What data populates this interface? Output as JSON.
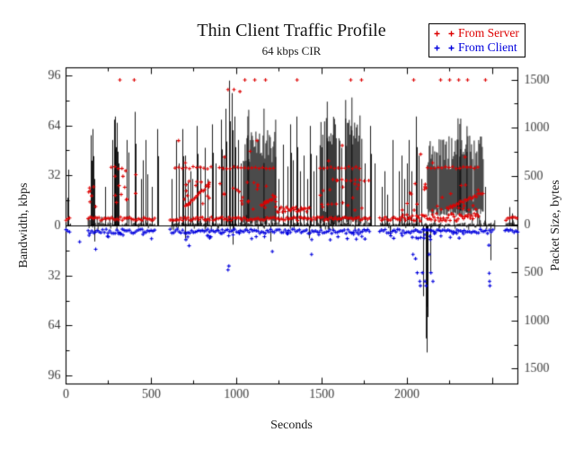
{
  "figure": {
    "title": "Thin Client Traffic Profile",
    "subtitle": "64 kbps CIR",
    "x_label": "Seconds",
    "y_left_label": "Bandwidth, kbps",
    "y_right_label": "Packet Size, bytes",
    "legend": {
      "items": [
        {
          "label": "From Server",
          "color": "#dd0000"
        },
        {
          "label": "From Client",
          "color": "#0000dd"
        }
      ]
    }
  },
  "chart_data": {
    "type": "line+scatter dual-axis time series",
    "title": "Thin Client Traffic Profile",
    "subtitle": "64 kbps CIR",
    "mirrored_axes": true,
    "note": "Upper half = traffic from server, lower half = traffic from client; tick labels show absolute values",
    "x_axis": {
      "label": "Seconds",
      "range": [
        0,
        2650
      ],
      "major_ticks": [
        0,
        500,
        1000,
        1500,
        2000,
        2500
      ],
      "labeled_ticks": [
        0,
        500,
        1000,
        1500,
        2000
      ],
      "minor_step": 250
    },
    "y_left": {
      "label": "Bandwidth, kbps",
      "range": [
        -101,
        101
      ],
      "major_ticks": [
        96,
        64,
        32,
        0,
        -32,
        -64,
        -96
      ],
      "minor_step": 16
    },
    "y_right": {
      "label": "Packet Size, bytes",
      "range": [
        -1626,
        1626
      ],
      "major_ticks": [
        1500,
        1000,
        500,
        0,
        -500,
        -1000,
        -1500
      ],
      "minor_step": 250
    },
    "legend_position": "top-right outside plot",
    "series": [
      {
        "name": "Bandwidth",
        "kind": "bandwidth-line",
        "axis": "left",
        "color": "#000000",
        "baseline_ranges": [
          [
            0,
            30
          ],
          [
            130,
            520
          ],
          [
            610,
            1790
          ],
          [
            1840,
            2520
          ],
          [
            2580,
            2650
          ]
        ],
        "dense_blocks": [
          {
            "range": [
              1040,
              1230
            ],
            "lo": 0,
            "hi": 62
          },
          {
            "range": [
              1490,
              1610
            ],
            "lo": 0,
            "hi": 72
          },
          {
            "range": [
              1640,
              1740
            ],
            "lo": 0,
            "hi": 72
          },
          {
            "range": [
              2120,
              2450
            ],
            "lo": 6,
            "hi": 58
          }
        ],
        "spikes": [
          [
            8,
            18
          ],
          [
            15,
            36
          ],
          [
            150,
            58
          ],
          [
            158,
            62
          ],
          [
            166,
            30
          ],
          [
            168,
            -10
          ],
          [
            232,
            25
          ],
          [
            274,
            55
          ],
          [
            283,
            68
          ],
          [
            290,
            70
          ],
          [
            300,
            66
          ],
          [
            310,
            40
          ],
          [
            358,
            55
          ],
          [
            369,
            47
          ],
          [
            405,
            73
          ],
          [
            440,
            30
          ],
          [
            455,
            42
          ],
          [
            470,
            55
          ],
          [
            480,
            33
          ],
          [
            505,
            25
          ],
          [
            537,
            62
          ],
          [
            623,
            30
          ],
          [
            648,
            55
          ],
          [
            665,
            40
          ],
          [
            685,
            62
          ],
          [
            700,
            45
          ],
          [
            702,
            -8
          ],
          [
            715,
            28
          ],
          [
            730,
            35
          ],
          [
            745,
            30
          ],
          [
            769,
            64
          ],
          [
            790,
            38
          ],
          [
            816,
            50
          ],
          [
            835,
            30
          ],
          [
            859,
            65
          ],
          [
            880,
            40
          ],
          [
            911,
            68
          ],
          [
            925,
            45
          ],
          [
            938,
            75
          ],
          [
            959,
            93
          ],
          [
            975,
            85
          ],
          [
            980,
            -12
          ],
          [
            990,
            70
          ],
          [
            1010,
            55
          ],
          [
            1025,
            40
          ],
          [
            1200,
            -10
          ],
          [
            1250,
            30
          ],
          [
            1275,
            52
          ],
          [
            1300,
            38
          ],
          [
            1317,
            65
          ],
          [
            1335,
            42
          ],
          [
            1354,
            70
          ],
          [
            1375,
            35
          ],
          [
            1396,
            45
          ],
          [
            1415,
            30
          ],
          [
            1430,
            -8
          ],
          [
            1433,
            64
          ],
          [
            1455,
            35
          ],
          [
            1470,
            45
          ],
          [
            1620,
            50
          ],
          [
            1755,
            40
          ],
          [
            1786,
            64
          ],
          [
            1812,
            40
          ],
          [
            1855,
            25
          ],
          [
            1870,
            35
          ],
          [
            1885,
            20
          ],
          [
            1900,
            -6
          ],
          [
            1917,
            55
          ],
          [
            1955,
            35
          ],
          [
            1970,
            45
          ],
          [
            1985,
            30
          ],
          [
            2000,
            40
          ],
          [
            2015,
            55
          ],
          [
            2030,
            35
          ],
          [
            2054,
            70
          ],
          [
            2070,
            45
          ],
          [
            2085,
            30
          ],
          [
            2095,
            -45
          ],
          [
            2110,
            -72
          ],
          [
            2120,
            -81
          ],
          [
            2140,
            -30
          ],
          [
            2460,
            25
          ],
          [
            2490,
            -22
          ],
          [
            2600,
            12
          ],
          [
            2620,
            8
          ]
        ]
      },
      {
        "name": "From Server",
        "kind": "packets",
        "axis": "right",
        "color": "#dd0000",
        "rows": [
          {
            "bytes": 60,
            "ranges": [
              [
                0,
                30
              ],
              [
                130,
                520
              ],
              [
                610,
                1790
              ],
              [
                1840,
                1960
              ],
              [
                2580,
                2650
              ]
            ],
            "step": 2,
            "jitter": 18
          },
          {
            "bytes": 75,
            "ranges": [
              [
                1960,
                2420
              ]
            ],
            "step": 1.5,
            "jitter": 40
          },
          {
            "bytes": 155,
            "ranges": [
              [
                1230,
                1430
              ]
            ],
            "step": 1.5,
            "jitter": 28
          },
          {
            "bytes": 590,
            "ranges": [
              [
                265,
                335
              ],
              [
                640,
                860
              ],
              [
                900,
                1230
              ],
              [
                1490,
                1740
              ],
              [
                2120,
                2420
              ]
            ],
            "step": 4,
            "jitter": 12
          },
          {
            "bytes": 460,
            "ranges": [
              [
                1565,
                1776
              ]
            ],
            "step": 5,
            "jitter": 10
          }
        ],
        "stairs": [
          {
            "from": [
              700,
              180
            ],
            "to": [
              840,
              420
            ],
            "n": 16
          },
          {
            "from": [
              1143,
              200
            ],
            "to": [
              1227,
              290
            ],
            "n": 12
          },
          {
            "from": [
              2235,
              170
            ],
            "to": [
              2445,
              330
            ],
            "n": 22
          }
        ],
        "clusters": [
          {
            "t": [
              130,
              175
            ],
            "bytes": [
              150,
              430
            ],
            "n": 7
          },
          {
            "t": [
              270,
              410
            ],
            "bytes": [
              200,
              560
            ],
            "n": 12
          },
          {
            "t": [
              640,
              860
            ],
            "bytes": [
              200,
              470
            ],
            "n": 16
          },
          {
            "t": [
              900,
              1230
            ],
            "bytes": [
              150,
              480
            ],
            "n": 22
          },
          {
            "t": [
              1490,
              1740
            ],
            "bytes": [
              150,
              460
            ],
            "n": 18
          },
          {
            "t": [
              1950,
              2420
            ],
            "bytes": [
              120,
              430
            ],
            "n": 26
          }
        ],
        "points": [
          [
            316,
            1500
          ],
          [
            400,
            1500
          ],
          [
            950,
            1400
          ],
          [
            985,
            1400
          ],
          [
            1020,
            1380
          ],
          [
            1049,
            1500
          ],
          [
            1107,
            1500
          ],
          [
            1170,
            1500
          ],
          [
            1355,
            1500
          ],
          [
            1670,
            1500
          ],
          [
            1733,
            1500
          ],
          [
            2039,
            1500
          ],
          [
            2197,
            1500
          ],
          [
            2250,
            1500
          ],
          [
            2303,
            1500
          ],
          [
            2355,
            1500
          ],
          [
            2460,
            1500
          ],
          [
            660,
            870
          ],
          [
            1080,
            760
          ],
          [
            1620,
            820
          ],
          [
            2080,
            730
          ],
          [
            700,
            640
          ],
          [
            930,
            700
          ],
          [
            1540,
            660
          ],
          [
            2150,
            640
          ],
          [
            2340,
            700
          ],
          [
            1120,
            870
          ]
        ]
      },
      {
        "name": "From Client",
        "kind": "packets",
        "axis": "right",
        "color": "#0000dd",
        "rows": [
          {
            "bytes": -70,
            "ranges": [
              [
                0,
                30
              ],
              [
                130,
                530
              ],
              [
                610,
                1790
              ],
              [
                1840,
                2510
              ],
              [
                2575,
                2650
              ]
            ],
            "step": 2,
            "jitter": 22
          }
        ],
        "clusters": [
          {
            "t": [
              130,
              520
            ],
            "bytes": [
              -150,
              -90
            ],
            "n": 8
          },
          {
            "t": [
              620,
              1790
            ],
            "bytes": [
              -160,
              -90
            ],
            "n": 25
          },
          {
            "t": [
              1840,
              2450
            ],
            "bytes": [
              -160,
              -90
            ],
            "n": 18
          }
        ],
        "points": [
          [
            80,
            -180
          ],
          [
            174,
            -256
          ],
          [
            722,
            -220
          ],
          [
            950,
            -470
          ],
          [
            955,
            -430
          ],
          [
            1210,
            -280
          ],
          [
            1440,
            -310
          ],
          [
            2035,
            -310
          ],
          [
            2050,
            -355
          ],
          [
            2060,
            -500
          ],
          [
            2075,
            -590
          ],
          [
            2078,
            -635
          ],
          [
            2090,
            -500
          ],
          [
            2105,
            -590
          ],
          [
            2112,
            -635
          ],
          [
            2130,
            -310
          ],
          [
            2140,
            -500
          ],
          [
            2152,
            -590
          ],
          [
            2480,
            -215
          ],
          [
            2482,
            -505
          ],
          [
            2484,
            -590
          ],
          [
            2486,
            -635
          ]
        ]
      }
    ]
  }
}
